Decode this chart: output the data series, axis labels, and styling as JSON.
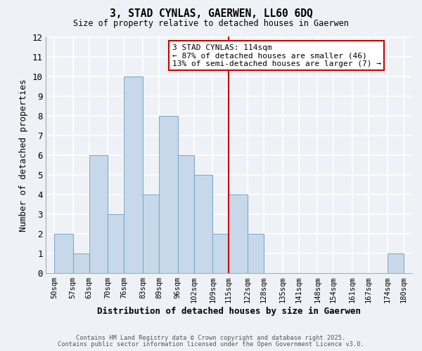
{
  "title": "3, STAD CYNLAS, GAERWEN, LL60 6DQ",
  "subtitle": "Size of property relative to detached houses in Gaerwen",
  "xlabel": "Distribution of detached houses by size in Gaerwen",
  "ylabel": "Number of detached properties",
  "bin_labels": [
    "50sqm",
    "57sqm",
    "63sqm",
    "70sqm",
    "76sqm",
    "83sqm",
    "89sqm",
    "96sqm",
    "102sqm",
    "109sqm",
    "115sqm",
    "122sqm",
    "128sqm",
    "135sqm",
    "141sqm",
    "148sqm",
    "154sqm",
    "161sqm",
    "167sqm",
    "174sqm",
    "180sqm"
  ],
  "bin_lefts": [
    50,
    57,
    63,
    70,
    76,
    83,
    89,
    96,
    102,
    109,
    115,
    122,
    128,
    135,
    141,
    148,
    154,
    161,
    167,
    174,
    180
  ],
  "bar_values": [
    2,
    1,
    6,
    3,
    10,
    4,
    8,
    6,
    5,
    2,
    4,
    2,
    0,
    0,
    0,
    0,
    0,
    0,
    0,
    1
  ],
  "bar_color": "#c8d8eb",
  "bar_edge_color": "#7faac8",
  "vline_x": 115,
  "vline_color": "#cc0000",
  "annotation_title": "3 STAD CYNLAS: 114sqm",
  "annotation_line1": "← 87% of detached houses are smaller (46)",
  "annotation_line2": "13% of semi-detached houses are larger (7) →",
  "annotation_box_facecolor": "#ffffff",
  "annotation_box_edgecolor": "#cc0000",
  "ylim": [
    0,
    12
  ],
  "yticks": [
    0,
    1,
    2,
    3,
    4,
    5,
    6,
    7,
    8,
    9,
    10,
    11,
    12
  ],
  "footer1": "Contains HM Land Registry data © Crown copyright and database right 2025.",
  "footer2": "Contains public sector information licensed under the Open Government Licence v3.0.",
  "bg_color": "#eef2f7",
  "grid_color": "#ffffff"
}
